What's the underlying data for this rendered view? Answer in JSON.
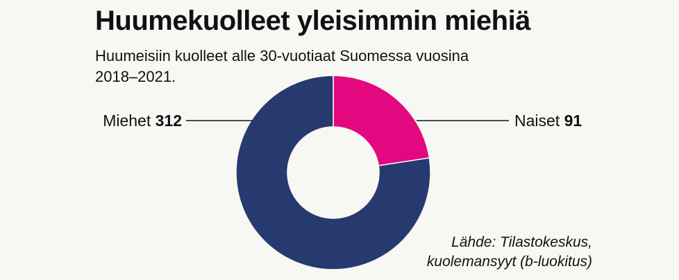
{
  "title": "Huumekuolleet yleisimmin miehiä",
  "subtitle": "Huumeisiin kuolleet alle 30-vuotiaat Suomessa vuosina 2018–2021.",
  "source_lines": [
    "Lähde: Tilastokeskus,",
    "kuolemansyyt (b-luokitus)"
  ],
  "chart_data": {
    "type": "pie",
    "title": "Huumekuolleet yleisimmin miehiä",
    "subtitle": "Huumeisiin kuolleet alle 30-vuotiaat Suomessa vuosina 2018–2021.",
    "donut": true,
    "start": "12 o'clock, clockwise",
    "slices": [
      {
        "label": "Naiset",
        "value": 91,
        "color": "#e3087f"
      },
      {
        "label": "Miehet",
        "value": 312,
        "color": "#273a6f"
      }
    ]
  }
}
